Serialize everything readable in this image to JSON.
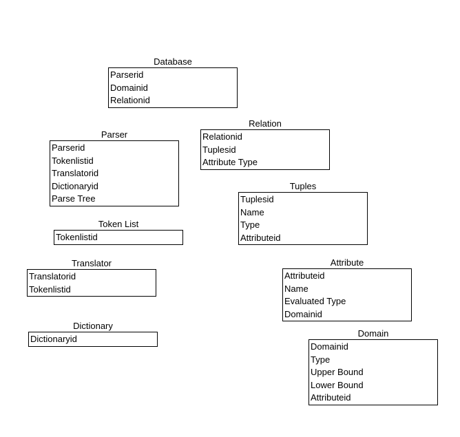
{
  "entities": [
    {
      "title": "Database",
      "fields": [
        "Parserid",
        "Domainid",
        "Relationid"
      ]
    },
    {
      "title": "Parser",
      "fields": [
        "Parserid",
        "Tokenlistid",
        "Translatorid",
        "Dictionaryid",
        "Parse Tree"
      ]
    },
    {
      "title": "Relation",
      "fields": [
        "Relationid",
        "Tuplesid",
        "Attribute Type"
      ]
    },
    {
      "title": "Tuples",
      "fields": [
        "Tuplesid",
        "Name",
        "Type",
        "Attributeid"
      ]
    },
    {
      "title": "Token List",
      "fields": [
        "Tokenlistid"
      ]
    },
    {
      "title": "Translator",
      "fields": [
        "Translatorid",
        "Tokenlistid"
      ]
    },
    {
      "title": "Attribute",
      "fields": [
        "Attributeid",
        "Name",
        "Evaluated Type",
        "Domainid"
      ]
    },
    {
      "title": "Dictionary",
      "fields": [
        "Dictionaryid"
      ]
    },
    {
      "title": "Domain",
      "fields": [
        "Domainid",
        "Type",
        "Upper Bound",
        "Lower Bound",
        "Attributeid"
      ]
    }
  ]
}
